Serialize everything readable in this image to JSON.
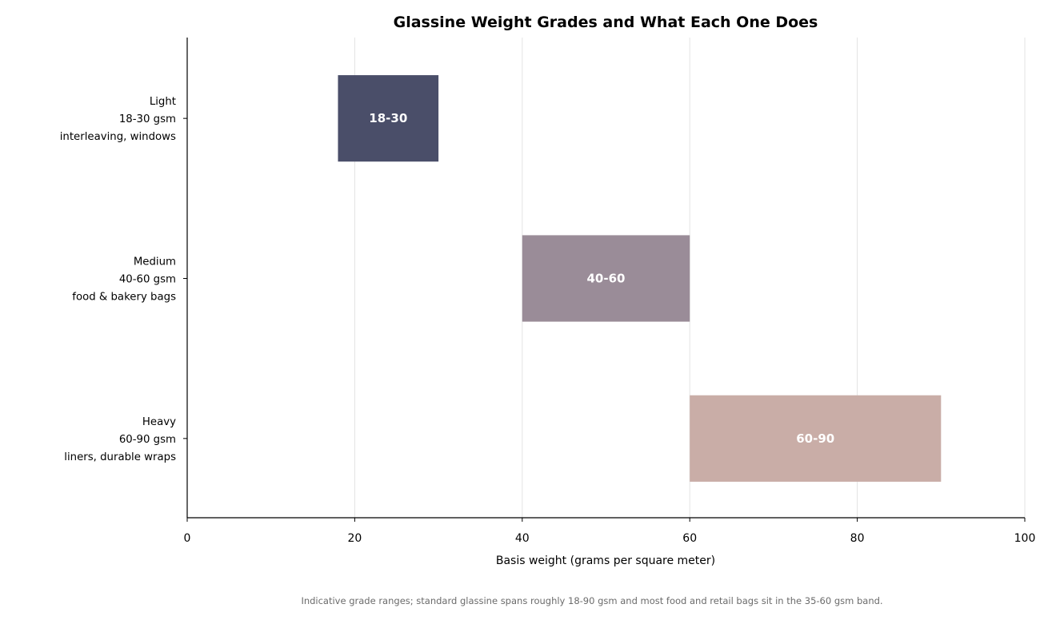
{
  "chart_data": {
    "type": "bar",
    "orientation": "horizontal",
    "title": "Glassine Weight Grades and What Each One Does",
    "xlabel": "Basis weight (grams per square meter)",
    "ylabel": "",
    "xlim": [
      0,
      100
    ],
    "xticks": [
      0,
      20,
      40,
      60,
      80,
      100
    ],
    "grid": "vertical",
    "categories": [
      {
        "name": "Light",
        "range_text": "18-30 gsm",
        "use": "interleaving, windows"
      },
      {
        "name": "Medium",
        "range_text": "40-60 gsm",
        "use": "food & bakery bags"
      },
      {
        "name": "Heavy",
        "range_text": "60-90 gsm",
        "use": "liners, durable wraps"
      }
    ],
    "ranges": [
      {
        "start": 18,
        "end": 30,
        "label": "18-30",
        "color": "#4a4e69"
      },
      {
        "start": 40,
        "end": 60,
        "label": "40-60",
        "color": "#9a8c98"
      },
      {
        "start": 60,
        "end": 90,
        "label": "60-90",
        "color": "#c9ada7"
      }
    ],
    "footnote": "Indicative grade ranges; standard glassine spans roughly 18-90 gsm and most food and retail bags sit in the 35-60 gsm band."
  }
}
